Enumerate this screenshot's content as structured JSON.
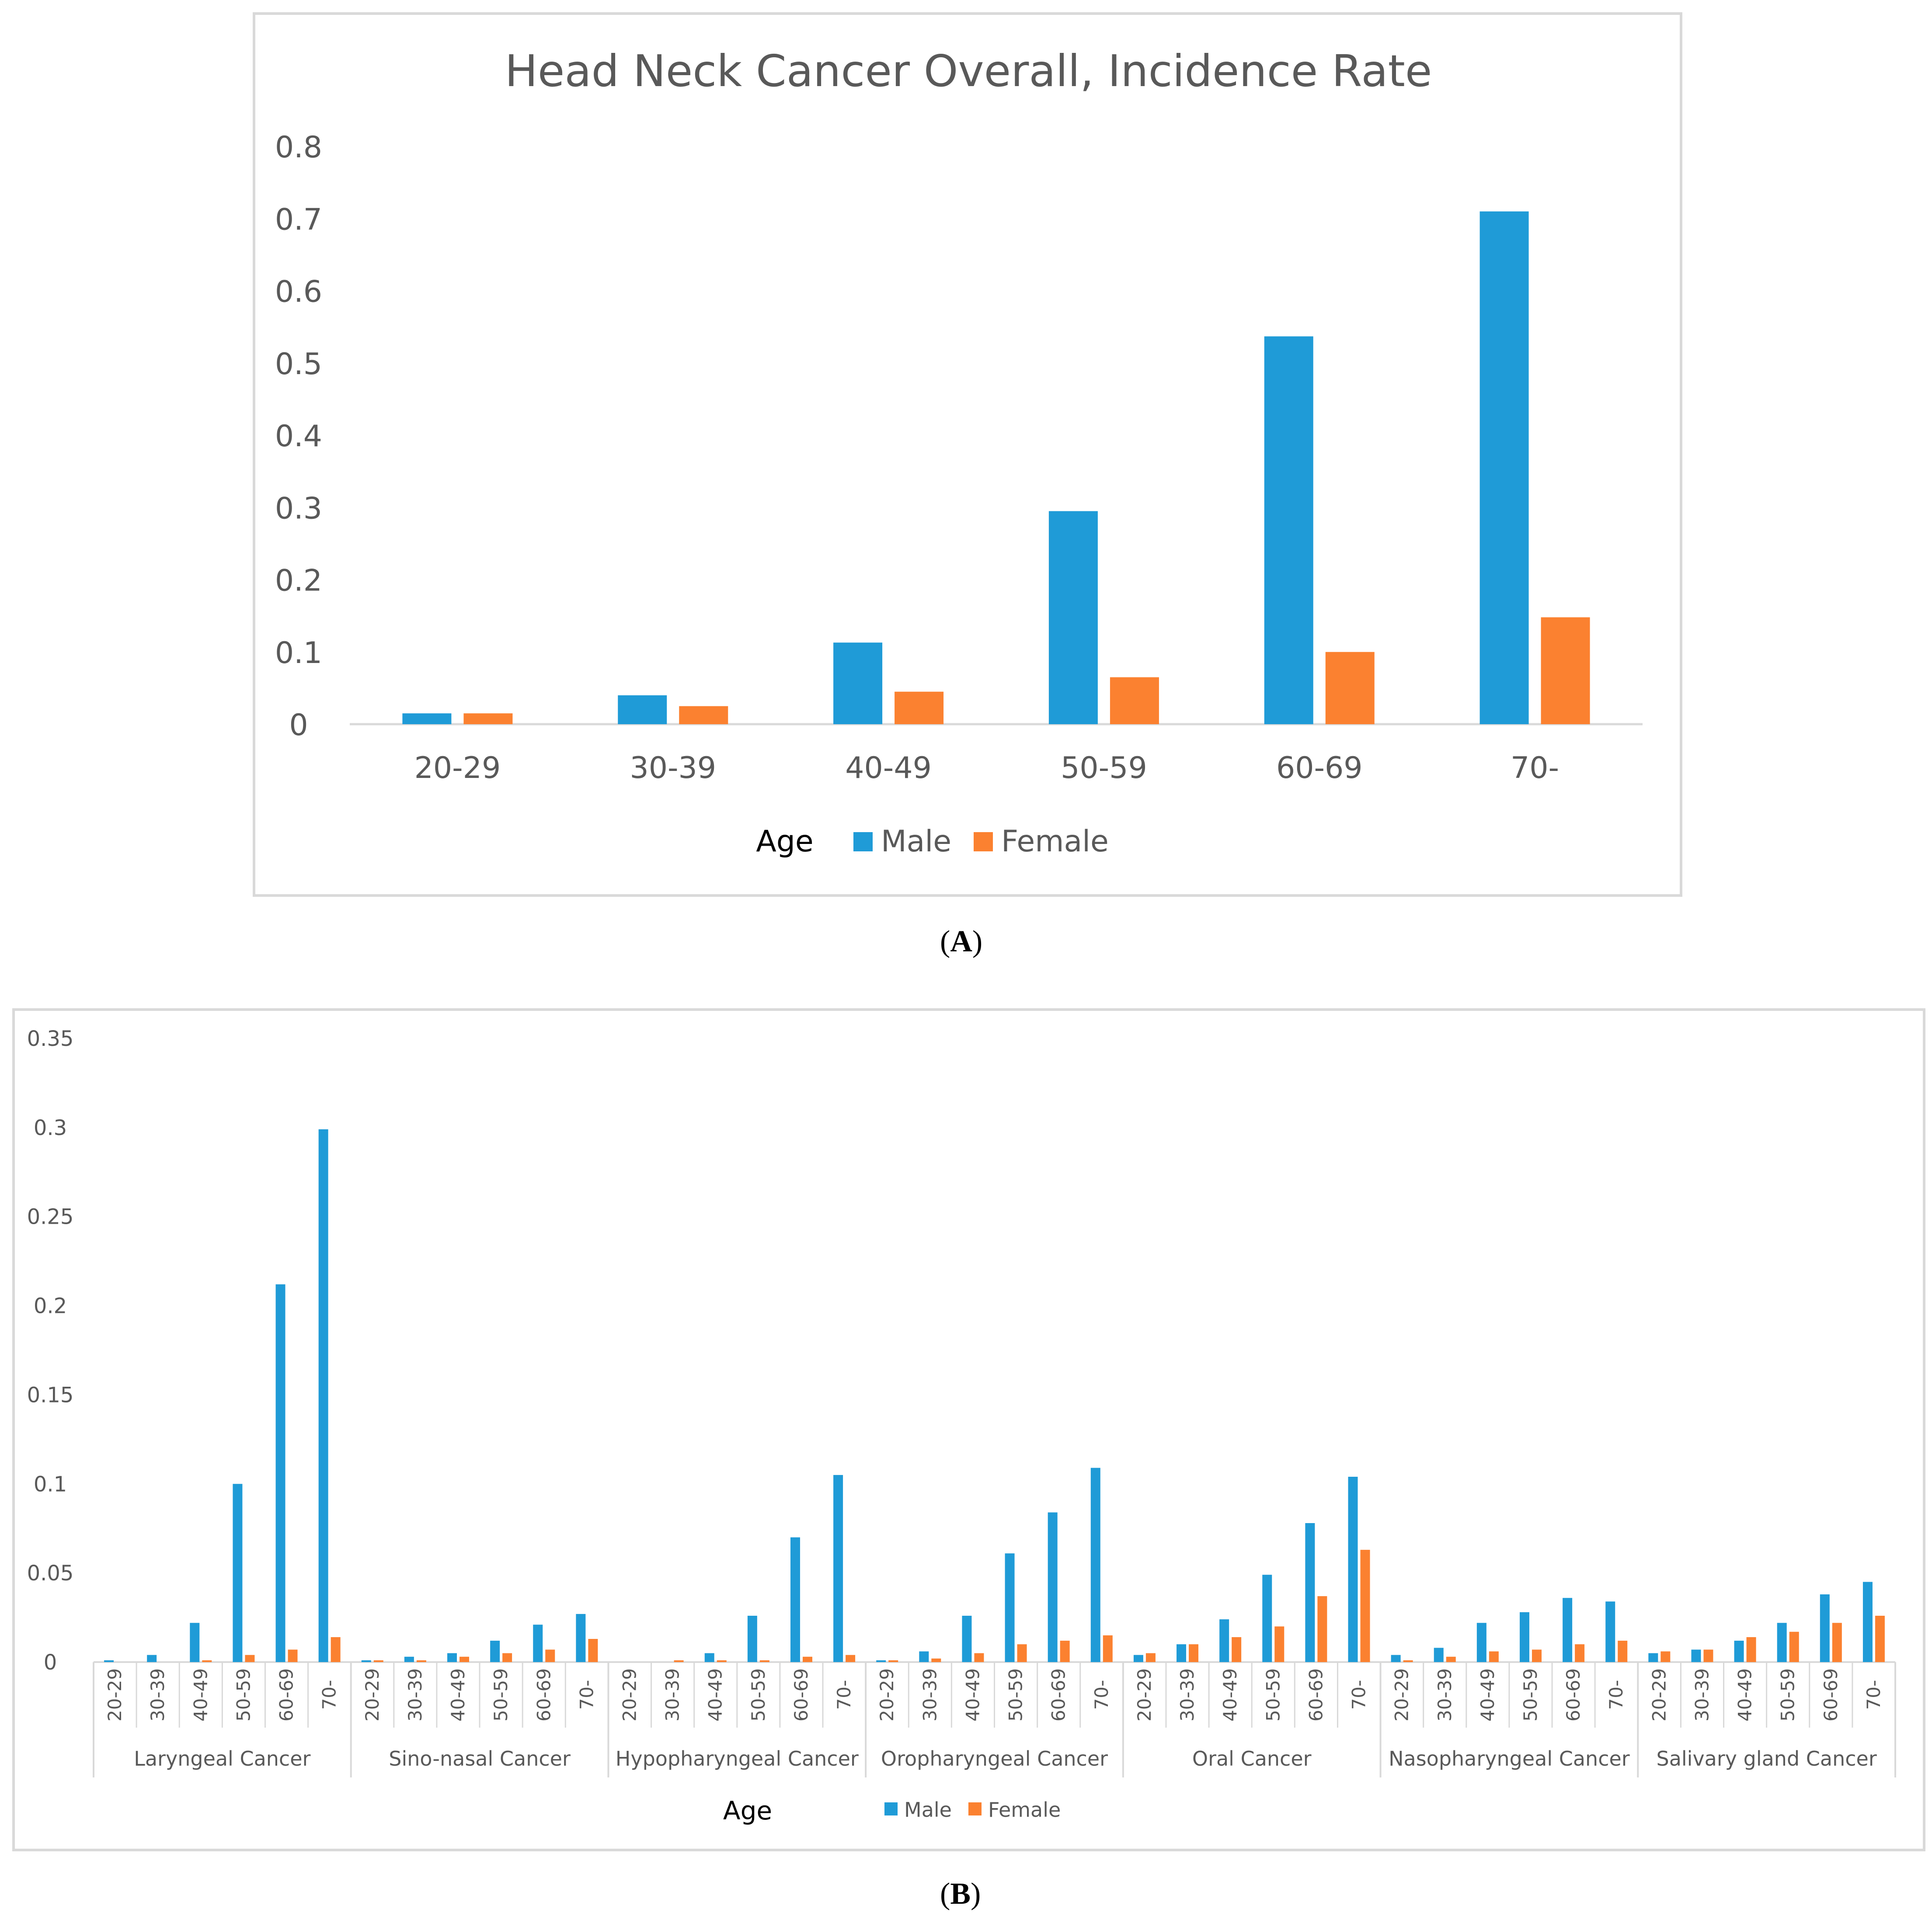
{
  "colors": {
    "male": "#1f9bd7",
    "female": "#fb8130",
    "axis": "#d9d9d9",
    "text": "#595959"
  },
  "captions": {
    "a": "A",
    "b": "B"
  },
  "chart_data": [
    {
      "type": "bar",
      "title": "Head Neck Cancer Overall, Incidence Rate",
      "xlabel": "Age",
      "ylabel": "",
      "ylim": [
        0,
        0.8
      ],
      "yticks": [
        "0",
        "0.1",
        "0.2",
        "0.3",
        "0.4",
        "0.5",
        "0.6",
        "0.7",
        "0.8"
      ],
      "categories": [
        "20-29",
        "30-39",
        "40-49",
        "50-59",
        "60-69",
        "70-"
      ],
      "series": [
        {
          "name": "Male",
          "values": [
            0.015,
            0.04,
            0.113,
            0.295,
            0.537,
            0.71
          ]
        },
        {
          "name": "Female",
          "values": [
            0.015,
            0.025,
            0.045,
            0.065,
            0.1,
            0.148
          ]
        }
      ],
      "legend": "bottom",
      "grid": false
    },
    {
      "type": "bar",
      "title": "",
      "xlabel": "Age",
      "ylabel": "",
      "ylim": [
        0,
        0.35
      ],
      "yticks": [
        "0",
        "0.05",
        "0.1",
        "0.15",
        "0.2",
        "0.25",
        "0.3",
        "0.35"
      ],
      "groups": [
        "Laryngeal Cancer",
        "Sino-nasal Cancer",
        "Hypopharyngeal Cancer",
        "Oropharyngeal Cancer",
        "Oral Cancer",
        "Nasopharyngeal Cancer",
        "Salivary gland Cancer"
      ],
      "categories": [
        "20-29",
        "30-39",
        "40-49",
        "50-59",
        "60-69",
        "70-"
      ],
      "series": [
        {
          "name": "Male",
          "values": [
            [
              0.001,
              0.004,
              0.022,
              0.1,
              0.212,
              0.299
            ],
            [
              0.001,
              0.003,
              0.005,
              0.012,
              0.021,
              0.027
            ],
            [
              0,
              0,
              0.005,
              0.026,
              0.07,
              0.105
            ],
            [
              0.001,
              0.006,
              0.026,
              0.061,
              0.084,
              0.109
            ],
            [
              0.004,
              0.01,
              0.024,
              0.049,
              0.078,
              0.104
            ],
            [
              0.004,
              0.008,
              0.022,
              0.028,
              0.036,
              0.034
            ],
            [
              0.005,
              0.007,
              0.012,
              0.022,
              0.038,
              0.045
            ]
          ]
        },
        {
          "name": "Female",
          "values": [
            [
              0,
              0,
              0.001,
              0.004,
              0.007,
              0.014
            ],
            [
              0.001,
              0.001,
              0.003,
              0.005,
              0.007,
              0.013
            ],
            [
              0,
              0.001,
              0.001,
              0.001,
              0.003,
              0.004
            ],
            [
              0.001,
              0.002,
              0.005,
              0.01,
              0.012,
              0.015
            ],
            [
              0.005,
              0.01,
              0.014,
              0.02,
              0.037,
              0.063
            ],
            [
              0.001,
              0.003,
              0.006,
              0.007,
              0.01,
              0.012
            ],
            [
              0.006,
              0.007,
              0.014,
              0.017,
              0.022,
              0.026
            ]
          ]
        }
      ],
      "legend": "bottom",
      "grid": false
    }
  ]
}
